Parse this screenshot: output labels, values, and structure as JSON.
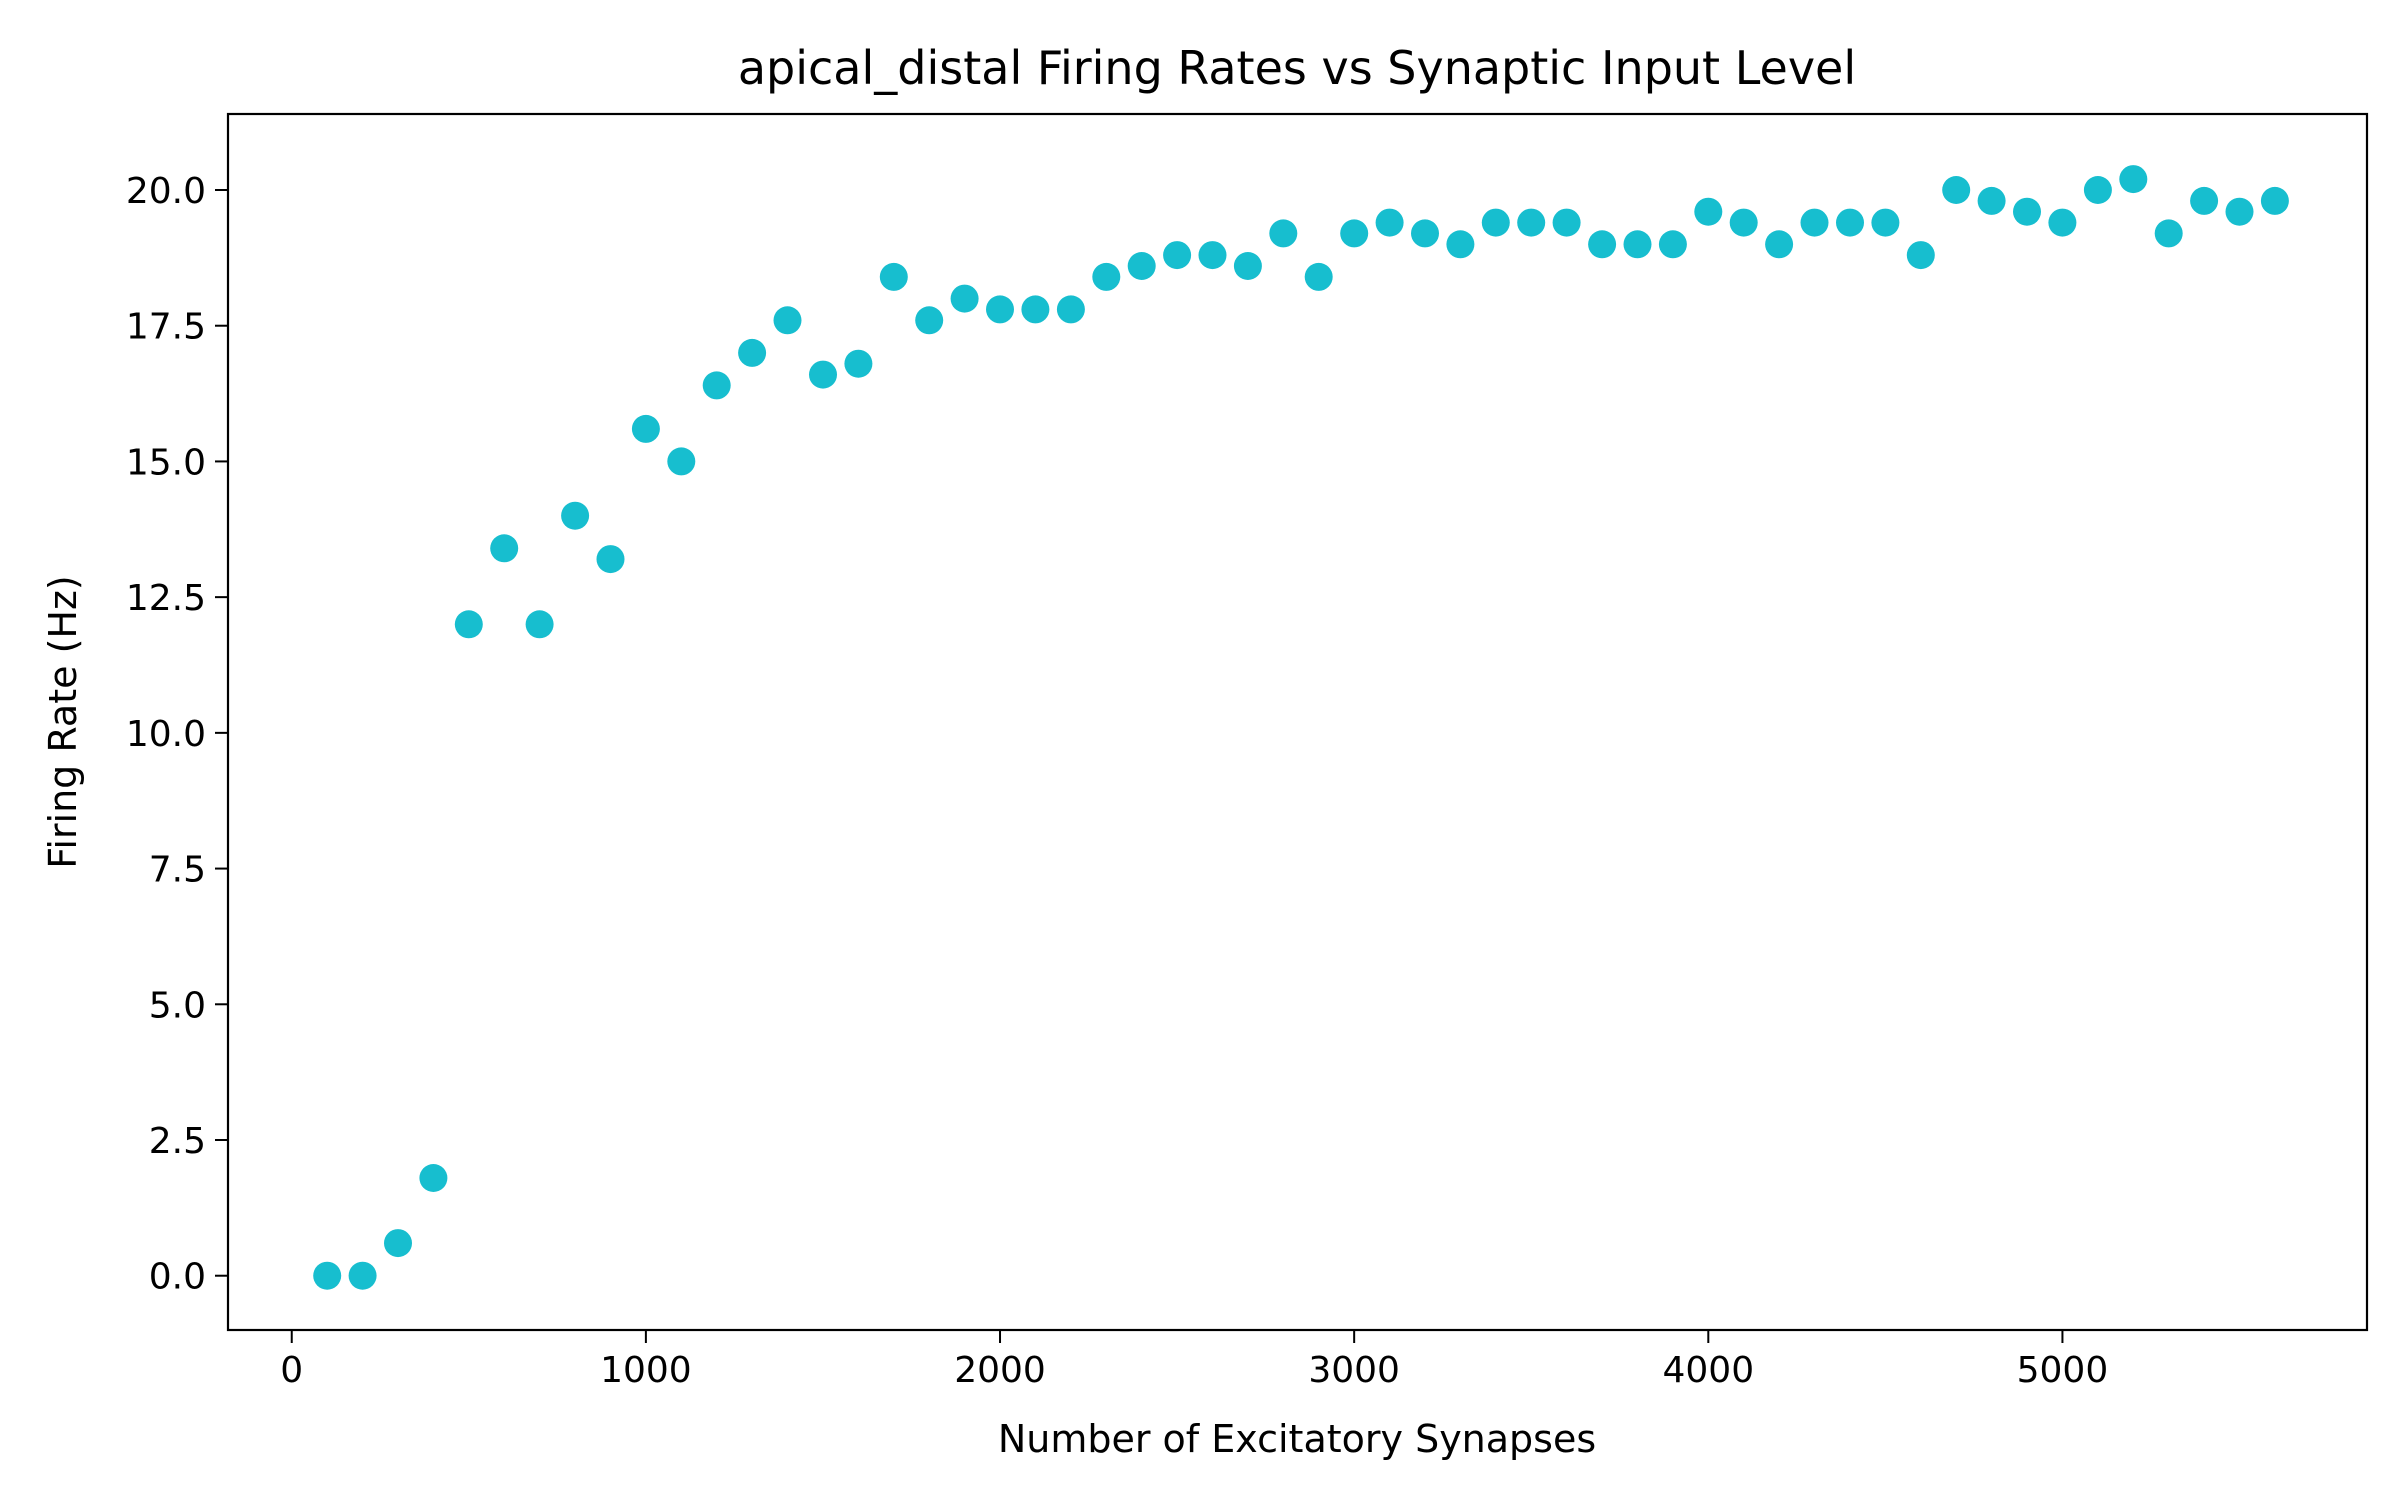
{
  "chart_data": {
    "type": "scatter",
    "title": "apical_distal Firing Rates vs Synaptic Input Level",
    "xlabel": "Number of Excitatory Synapses",
    "ylabel": "Firing Rate (Hz)",
    "xlim": [
      -180,
      5860
    ],
    "ylim": [
      -1.0,
      21.4
    ],
    "xticks": [
      0,
      1000,
      2000,
      3000,
      4000,
      5000
    ],
    "xtick_labels": [
      "0",
      "1000",
      "2000",
      "3000",
      "4000",
      "5000"
    ],
    "yticks": [
      0.0,
      2.5,
      5.0,
      7.5,
      10.0,
      12.5,
      15.0,
      17.5,
      20.0
    ],
    "ytick_labels": [
      "0.0",
      "2.5",
      "5.0",
      "7.5",
      "10.0",
      "12.5",
      "15.0",
      "17.5",
      "20.0"
    ],
    "grid": false,
    "legend": "none",
    "marker_color": "#17becf",
    "series": [
      {
        "x": [
          100,
          200,
          300,
          400,
          500,
          600,
          700,
          800,
          900,
          1000,
          1100,
          1200,
          1300,
          1400,
          1500,
          1600,
          1700,
          1800,
          1900,
          2000,
          2100,
          2200,
          2300,
          2400,
          2500,
          2600,
          2700,
          2800,
          2900,
          3000,
          3100,
          3200,
          3300,
          3400,
          3500,
          3600,
          3700,
          3800,
          3900,
          4000,
          4100,
          4200,
          4300,
          4400,
          4500,
          4600,
          4700,
          4800,
          4900,
          5000,
          5100,
          5200,
          5300,
          5400,
          5500,
          5600
        ],
        "y": [
          0.0,
          0.0,
          0.6,
          1.8,
          12.0,
          13.4,
          12.0,
          14.0,
          13.2,
          15.6,
          15.0,
          16.4,
          17.0,
          17.6,
          16.6,
          16.8,
          18.4,
          17.6,
          18.0,
          17.8,
          17.8,
          17.8,
          18.4,
          18.6,
          18.8,
          18.8,
          18.6,
          19.2,
          18.4,
          19.2,
          19.4,
          19.2,
          19.0,
          19.4,
          19.4,
          19.4,
          19.0,
          19.0,
          19.0,
          19.6,
          19.4,
          19.0,
          19.4,
          19.4,
          19.4,
          18.8,
          20.0,
          19.8,
          19.6,
          19.4,
          20.0,
          20.2,
          19.2,
          19.8,
          19.6,
          19.8
        ]
      }
    ]
  }
}
